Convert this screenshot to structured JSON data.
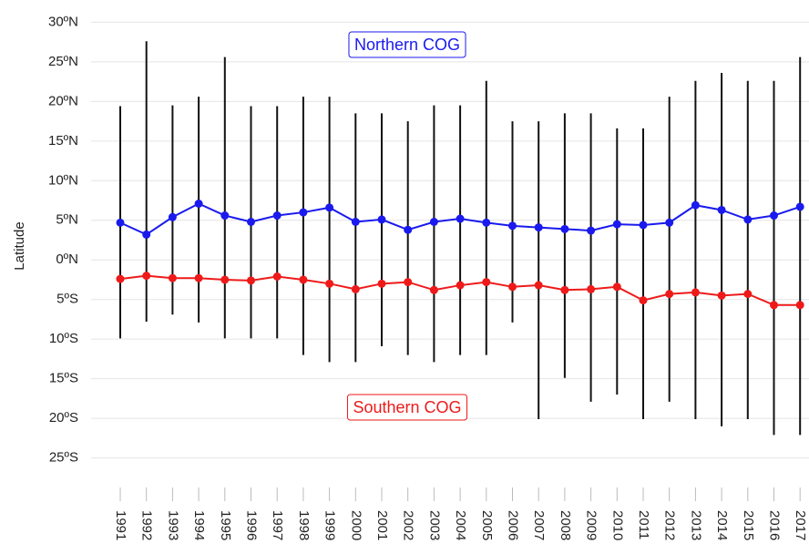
{
  "chart_data": {
    "type": "line",
    "y_label": "Latitude",
    "categories": [
      "1991",
      "1992",
      "1993",
      "1994",
      "1995",
      "1996",
      "1997",
      "1998",
      "1999",
      "2000",
      "2001",
      "2002",
      "2003",
      "2004",
      "2005",
      "2006",
      "2007",
      "2008",
      "2009",
      "2010",
      "2011",
      "2012",
      "2013",
      "2014",
      "2015",
      "2016",
      "2017"
    ],
    "series": [
      {
        "name": "Northern COG",
        "color": "#1a1aee",
        "values": [
          4.7,
          3.2,
          5.4,
          7.1,
          5.6,
          4.8,
          5.6,
          6.0,
          6.6,
          4.8,
          5.1,
          3.8,
          4.8,
          5.2,
          4.7,
          4.3,
          4.1,
          3.9,
          3.7,
          4.5,
          4.4,
          4.7,
          6.9,
          6.3,
          5.1,
          5.6,
          6.7
        ]
      },
      {
        "name": "Southern COG",
        "color": "#ee1a1a",
        "values": [
          -2.4,
          -2.0,
          -2.3,
          -2.3,
          -2.5,
          -2.6,
          -2.1,
          -2.5,
          -3.0,
          -3.7,
          -3.0,
          -2.8,
          -3.8,
          -3.2,
          -2.8,
          -3.4,
          -3.2,
          -3.8,
          -3.7,
          -3.4,
          -5.1,
          -4.3,
          -4.1,
          -4.5,
          -4.3,
          -5.7,
          -5.7
        ]
      }
    ],
    "extent_max": [
      19.4,
      27.6,
      19.5,
      20.6,
      25.6,
      19.4,
      19.4,
      20.6,
      20.6,
      18.5,
      18.5,
      17.5,
      19.5,
      19.5,
      22.6,
      17.5,
      17.5,
      18.5,
      18.5,
      16.6,
      16.6,
      20.6,
      22.6,
      23.6,
      22.6,
      22.6,
      25.6
    ],
    "extent_min": [
      -9.9,
      -7.8,
      -6.9,
      -7.9,
      -9.9,
      -9.9,
      -9.9,
      -12,
      -12.9,
      -12.9,
      -10.9,
      -12,
      -12.9,
      -12,
      -12,
      -7.9,
      -20.1,
      -14.9,
      -17.9,
      -17,
      -20.1,
      -17.9,
      -20.1,
      -21,
      -20.1,
      -22.1,
      -22.1
    ],
    "ylim": [
      -27,
      32
    ],
    "yticks": [
      {
        "value": 30,
        "label": "30ºN"
      },
      {
        "value": 25,
        "label": "25ºN"
      },
      {
        "value": 20,
        "label": "20ºN"
      },
      {
        "value": 15,
        "label": "15ºN"
      },
      {
        "value": 10,
        "label": "10ºN"
      },
      {
        "value": 5,
        "label": "5ºN"
      },
      {
        "value": 0,
        "label": "0ºN"
      },
      {
        "value": -5,
        "label": "5ºS"
      },
      {
        "value": -10,
        "label": "10ºS"
      },
      {
        "value": -15,
        "label": "15ºS"
      },
      {
        "value": -20,
        "label": "20ºS"
      },
      {
        "value": -25,
        "label": "25ºS"
      }
    ],
    "grid": true
  }
}
